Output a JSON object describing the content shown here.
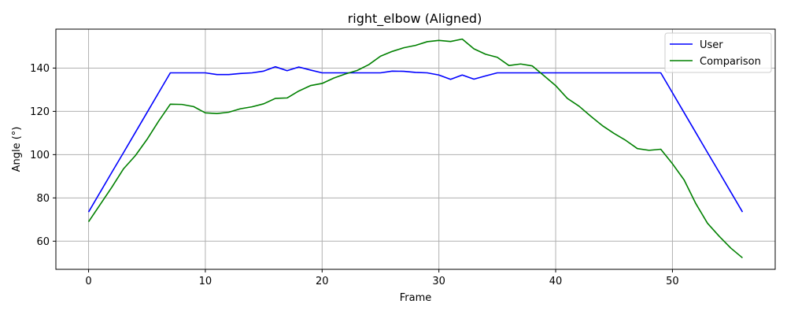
{
  "chart_data": {
    "type": "line",
    "title": "right_elbow (Aligned)",
    "xlabel": "Frame",
    "ylabel": "Angle (°)",
    "xlim": [
      -2.8,
      58.8
    ],
    "ylim": [
      47,
      158
    ],
    "xticks": [
      0,
      10,
      20,
      30,
      40,
      50
    ],
    "yticks": [
      60,
      80,
      100,
      120,
      140
    ],
    "grid": true,
    "legend_position": "top-right",
    "x": [
      0,
      1,
      2,
      3,
      4,
      5,
      6,
      7,
      8,
      9,
      10,
      11,
      12,
      13,
      14,
      15,
      16,
      17,
      18,
      19,
      20,
      21,
      22,
      23,
      24,
      25,
      26,
      27,
      28,
      29,
      30,
      31,
      32,
      33,
      34,
      35,
      36,
      37,
      38,
      39,
      40,
      41,
      42,
      43,
      44,
      45,
      46,
      47,
      48,
      49,
      50,
      51,
      52,
      53,
      54,
      55,
      56
    ],
    "series": [
      {
        "name": "User",
        "color": "#0000ff",
        "values": [
          73.5,
          82.7,
          91.9,
          101.0,
          110.2,
          119.4,
          128.6,
          137.8,
          137.8,
          137.8,
          137.8,
          137.0,
          137.0,
          137.5,
          137.8,
          138.6,
          140.6,
          138.8,
          140.5,
          139.1,
          137.8,
          137.8,
          137.8,
          137.8,
          137.8,
          137.8,
          138.6,
          138.5,
          138.0,
          137.8,
          136.8,
          134.8,
          136.8,
          134.9,
          136.4,
          137.8,
          137.8,
          137.8,
          137.8,
          137.8,
          137.8,
          137.8,
          137.8,
          137.8,
          137.8,
          137.8,
          137.8,
          137.8,
          137.8,
          137.8,
          128.6,
          119.4,
          110.2,
          101.0,
          91.9,
          82.7,
          73.5
        ]
      },
      {
        "name": "Comparison",
        "color": "#008000",
        "values": [
          69.0,
          77.0,
          85.0,
          93.5,
          99.5,
          107.0,
          115.5,
          123.3,
          123.2,
          122.2,
          119.3,
          119.0,
          119.6,
          121.2,
          122.1,
          123.5,
          126.0,
          126.2,
          129.4,
          131.9,
          132.9,
          135.4,
          137.3,
          138.9,
          141.6,
          145.5,
          147.7,
          149.4,
          150.5,
          152.2,
          152.8,
          152.3,
          153.4,
          148.9,
          146.4,
          145.0,
          141.2,
          141.9,
          141.0,
          136.5,
          131.9,
          126.0,
          122.4,
          117.8,
          113.4,
          109.8,
          106.6,
          102.8,
          102.0,
          102.5,
          95.8,
          88.3,
          77.4,
          68.3,
          62.3,
          56.8,
          52.3
        ]
      }
    ]
  }
}
